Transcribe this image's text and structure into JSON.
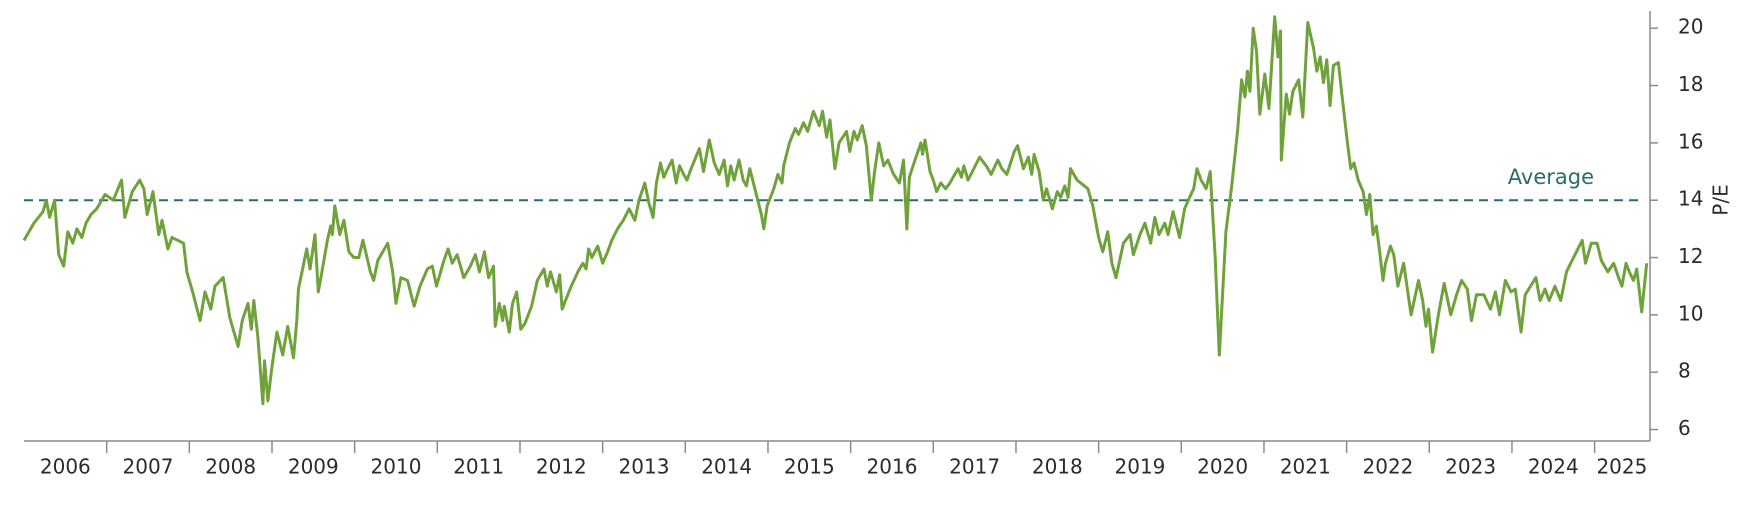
{
  "chart_data": {
    "type": "line",
    "ylabel": "P/E",
    "color": "#6fa23a",
    "average": {
      "value": 14,
      "label": "Average",
      "color": "#2a6b6b"
    },
    "xlim": [
      2006,
      2025.67
    ],
    "ylim": [
      5.6,
      20.6
    ],
    "yticks": [
      6,
      8,
      10,
      12,
      14,
      16,
      18,
      20
    ],
    "xtick_marks": [
      2007,
      2008,
      2009,
      2010,
      2011,
      2012,
      2013,
      2014,
      2015,
      2016,
      2017,
      2018,
      2019,
      2020,
      2021,
      2022,
      2023,
      2024,
      2025
    ],
    "xticks": [
      {
        "value": 2006.5,
        "label": "2006"
      },
      {
        "value": 2007.5,
        "label": "2007"
      },
      {
        "value": 2008.5,
        "label": "2008"
      },
      {
        "value": 2009.5,
        "label": "2009"
      },
      {
        "value": 2010.5,
        "label": "2010"
      },
      {
        "value": 2011.5,
        "label": "2011"
      },
      {
        "value": 2012.5,
        "label": "2012"
      },
      {
        "value": 2013.5,
        "label": "2013"
      },
      {
        "value": 2014.5,
        "label": "2014"
      },
      {
        "value": 2015.5,
        "label": "2015"
      },
      {
        "value": 2016.5,
        "label": "2016"
      },
      {
        "value": 2017.5,
        "label": "2017"
      },
      {
        "value": 2018.5,
        "label": "2018"
      },
      {
        "value": 2019.5,
        "label": "2019"
      },
      {
        "value": 2020.5,
        "label": "2020"
      },
      {
        "value": 2021.5,
        "label": "2021"
      },
      {
        "value": 2022.5,
        "label": "2022"
      },
      {
        "value": 2023.5,
        "label": "2023"
      },
      {
        "value": 2024.5,
        "label": "2024"
      },
      {
        "value": 2025.33,
        "label": "2025"
      }
    ],
    "x": [
      2006.0,
      2006.12,
      2006.23,
      2006.27,
      2006.31,
      2006.37,
      2006.42,
      2006.48,
      2006.53,
      2006.59,
      2006.64,
      2006.7,
      2006.75,
      2006.81,
      2006.88,
      2006.98,
      2007.08,
      2007.18,
      2007.22,
      2007.31,
      2007.4,
      2007.45,
      2007.49,
      2007.56,
      2007.63,
      2007.67,
      2007.74,
      2007.79,
      2007.86,
      2007.93,
      2007.97,
      2008.04,
      2008.13,
      2008.19,
      2008.26,
      2008.31,
      2008.41,
      2008.49,
      2008.59,
      2008.64,
      2008.71,
      2008.75,
      2008.78,
      2008.83,
      2008.89,
      2008.91,
      2008.95,
      2009.0,
      2009.06,
      2009.13,
      2009.19,
      2009.26,
      2009.3,
      2009.32,
      2009.42,
      2009.46,
      2009.52,
      2009.56,
      2009.61,
      2009.67,
      2009.71,
      2009.73,
      2009.76,
      2009.82,
      2009.87,
      2009.93,
      2009.99,
      2010.05,
      2010.1,
      2010.19,
      2010.23,
      2010.28,
      2010.4,
      2010.46,
      2010.5,
      2010.56,
      2010.64,
      2010.72,
      2010.79,
      2010.88,
      2010.94,
      2010.99,
      2011.08,
      2011.13,
      2011.18,
      2011.24,
      2011.32,
      2011.4,
      2011.46,
      2011.51,
      2011.57,
      2011.62,
      2011.68,
      2011.7,
      2011.75,
      2011.79,
      2011.81,
      2011.87,
      2011.91,
      2011.96,
      2012.01,
      2012.06,
      2012.14,
      2012.21,
      2012.29,
      2012.33,
      2012.37,
      2012.44,
      2012.48,
      2012.51,
      2012.55,
      2012.62,
      2012.7,
      2012.76,
      2012.8,
      2012.83,
      2012.87,
      2012.94,
      2013.0,
      2013.06,
      2013.11,
      2013.18,
      2013.25,
      2013.32,
      2013.39,
      2013.44,
      2013.51,
      2013.56,
      2013.61,
      2013.65,
      2013.7,
      2013.74,
      2013.77,
      2013.84,
      2013.89,
      2013.93,
      2013.98,
      2014.02,
      2014.07,
      2014.17,
      2014.22,
      2014.29,
      2014.35,
      2014.41,
      2014.47,
      2014.51,
      2014.55,
      2014.59,
      2014.65,
      2014.7,
      2014.74,
      2014.78,
      2014.85,
      2014.92,
      2014.95,
      2014.99,
      2015.07,
      2015.12,
      2015.17,
      2015.19,
      2015.26,
      2015.33,
      2015.37,
      2015.43,
      2015.48,
      2015.55,
      2015.62,
      2015.66,
      2015.71,
      2015.75,
      2015.81,
      2015.86,
      2015.95,
      2015.99,
      2016.04,
      2016.08,
      2016.14,
      2016.19,
      2016.25,
      2016.29,
      2016.34,
      2016.4,
      2016.45,
      2016.52,
      2016.59,
      2016.64,
      2016.68,
      2016.71,
      2016.79,
      2016.85,
      2016.87,
      2016.9,
      2016.96,
      2017.0,
      2017.04,
      2017.09,
      2017.15,
      2017.2,
      2017.24,
      2017.3,
      2017.34,
      2017.37,
      2017.42,
      2017.56,
      2017.64,
      2017.7,
      2017.78,
      2017.83,
      2017.89,
      2017.98,
      2018.02,
      2018.09,
      2018.15,
      2018.19,
      2018.22,
      2018.28,
      2018.33,
      2018.37,
      2018.44,
      2018.5,
      2018.54,
      2018.59,
      2018.63,
      2018.66,
      2018.74,
      2018.87,
      2018.93,
      2019.0,
      2019.05,
      2019.11,
      2019.16,
      2019.21,
      2019.3,
      2019.38,
      2019.42,
      2019.5,
      2019.56,
      2019.63,
      2019.68,
      2019.73,
      2019.8,
      2019.84,
      2019.9,
      2019.98,
      2020.04,
      2020.1,
      2020.15,
      2020.19,
      2020.24,
      2020.3,
      2020.35,
      2020.41,
      2020.46,
      2020.54,
      2020.61,
      2020.68,
      2020.73,
      2020.77,
      2020.8,
      2020.83,
      2020.87,
      2020.91,
      2020.95,
      2021.01,
      2021.06,
      2021.13,
      2021.17,
      2021.2,
      2021.21,
      2021.27,
      2021.31,
      2021.35,
      2021.42,
      2021.47,
      2021.53,
      2021.6,
      2021.64,
      2021.68,
      2021.72,
      2021.76,
      2021.8,
      2021.84,
      2021.9,
      2021.95,
      2022.01,
      2022.05,
      2022.09,
      2022.14,
      2022.2,
      2022.24,
      2022.28,
      2022.32,
      2022.36,
      2022.4,
      2022.44,
      2022.47,
      2022.53,
      2022.57,
      2022.62,
      2022.69,
      2022.74,
      2022.78,
      2022.87,
      2022.92,
      2022.96,
      2022.99,
      2023.04,
      2023.11,
      2023.18,
      2023.26,
      2023.33,
      2023.39,
      2023.46,
      2023.51,
      2023.57,
      2023.66,
      2023.74,
      2023.8,
      2023.85,
      2023.92,
      2023.99,
      2024.04,
      2024.11,
      2024.16,
      2024.29,
      2024.34,
      2024.4,
      2024.45,
      2024.52,
      2024.59,
      2024.66,
      2024.71,
      2024.78,
      2024.85,
      2024.89,
      2024.96,
      2025.03,
      2025.08,
      2025.16,
      2025.23,
      2025.29,
      2025.33,
      2025.38,
      2025.42,
      2025.47,
      2025.51,
      2025.57,
      2025.63
    ],
    "values": [
      12.6,
      13.2,
      13.6,
      14.0,
      13.4,
      14.0,
      12.1,
      11.7,
      12.9,
      12.5,
      13.0,
      12.7,
      13.2,
      13.5,
      13.7,
      14.2,
      14.0,
      14.7,
      13.4,
      14.3,
      14.7,
      14.4,
      13.5,
      14.3,
      12.8,
      13.3,
      12.3,
      12.7,
      12.6,
      12.5,
      11.5,
      10.8,
      9.8,
      10.8,
      10.2,
      11.0,
      11.3,
      9.9,
      8.9,
      9.8,
      10.4,
      9.5,
      10.5,
      9.2,
      6.9,
      8.4,
      7.0,
      8.2,
      9.4,
      8.6,
      9.6,
      8.5,
      9.8,
      10.9,
      12.3,
      11.6,
      12.8,
      10.8,
      11.6,
      12.6,
      13.1,
      12.8,
      13.8,
      12.8,
      13.3,
      12.2,
      12.0,
      12.0,
      12.6,
      11.5,
      11.2,
      11.9,
      12.5,
      11.5,
      10.4,
      11.3,
      11.2,
      10.3,
      11.0,
      11.6,
      11.7,
      11.0,
      11.9,
      12.3,
      11.8,
      12.1,
      11.3,
      11.7,
      12.1,
      11.5,
      12.2,
      11.3,
      11.7,
      9.6,
      10.4,
      9.8,
      10.3,
      9.4,
      10.4,
      10.8,
      9.5,
      9.7,
      10.3,
      11.2,
      11.6,
      11.0,
      11.5,
      10.8,
      11.4,
      10.2,
      10.5,
      11.0,
      11.5,
      11.8,
      11.6,
      12.3,
      12.0,
      12.4,
      11.8,
      12.2,
      12.6,
      13.0,
      13.3,
      13.7,
      13.3,
      14.0,
      14.6,
      13.9,
      13.4,
      14.6,
      15.3,
      14.8,
      15.0,
      15.4,
      14.6,
      15.2,
      14.9,
      14.7,
      15.1,
      15.8,
      15.0,
      16.1,
      15.3,
      14.9,
      15.4,
      14.5,
      15.2,
      14.7,
      15.4,
      14.7,
      14.5,
      15.1,
      14.3,
      13.5,
      13.0,
      13.8,
      14.4,
      14.9,
      14.6,
      15.2,
      16.0,
      16.5,
      16.3,
      16.7,
      16.4,
      17.1,
      16.6,
      17.1,
      16.2,
      16.8,
      15.1,
      16.0,
      16.4,
      15.7,
      16.4,
      16.1,
      16.6,
      15.9,
      14.0,
      15.0,
      16.0,
      15.2,
      15.4,
      14.9,
      14.6,
      15.4,
      13.0,
      14.8,
      15.5,
      16.0,
      15.6,
      16.1,
      15.0,
      14.7,
      14.3,
      14.6,
      14.4,
      14.6,
      14.8,
      15.1,
      14.8,
      15.2,
      14.7,
      15.5,
      15.2,
      14.9,
      15.4,
      15.1,
      14.9,
      15.7,
      15.9,
      15.1,
      15.5,
      14.9,
      15.6,
      15.0,
      14.0,
      14.4,
      13.7,
      14.3,
      14.1,
      14.5,
      14.1,
      15.1,
      14.7,
      14.4,
      13.8,
      12.7,
      12.2,
      12.9,
      11.8,
      11.3,
      12.5,
      12.8,
      12.1,
      12.8,
      13.2,
      12.5,
      13.4,
      12.8,
      13.2,
      12.8,
      13.6,
      12.7,
      13.7,
      14.1,
      14.4,
      15.1,
      14.7,
      14.4,
      15.0,
      12.0,
      8.6,
      12.9,
      14.5,
      16.4,
      18.2,
      17.6,
      18.5,
      17.8,
      20.0,
      19.2,
      17.0,
      18.4,
      17.2,
      20.4,
      19.0,
      19.9,
      15.4,
      17.7,
      17.0,
      17.8,
      18.2,
      16.9,
      20.2,
      19.3,
      18.5,
      19.0,
      18.1,
      18.9,
      17.3,
      18.7,
      18.8,
      17.5,
      16.0,
      15.1,
      15.3,
      14.7,
      14.3,
      13.5,
      14.2,
      12.8,
      13.1,
      12.2,
      11.2,
      11.8,
      12.4,
      12.1,
      11.0,
      11.8,
      10.8,
      10.0,
      11.2,
      10.5,
      9.6,
      10.2,
      8.7,
      10.0,
      11.1,
      10.0,
      10.7,
      11.2,
      10.9,
      9.8,
      10.7,
      10.7,
      10.2,
      10.8,
      10.0,
      11.2,
      10.8,
      10.9,
      9.4,
      10.7,
      11.3,
      10.5,
      10.9,
      10.5,
      11.0,
      10.5,
      11.5,
      11.8,
      12.2,
      12.6,
      11.8,
      12.5,
      12.5,
      11.9,
      11.5,
      11.8,
      11.3,
      11.0,
      11.8,
      11.5,
      11.2,
      11.6,
      10.1,
      11.8
    ]
  }
}
